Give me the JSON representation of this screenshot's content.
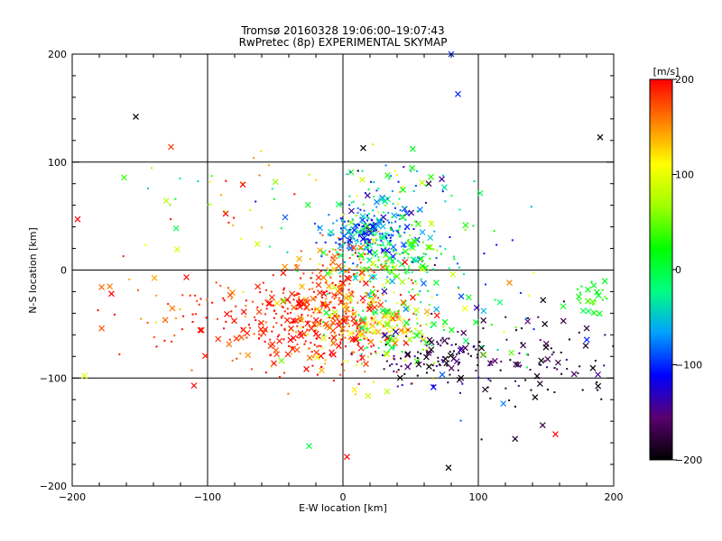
{
  "chart_data": {
    "type": "scatter",
    "title": "Tromsø 20160328 19:06:00–19:07:43",
    "subtitle": "RwPretec (8p) EXPERIMENTAL SKYMAP",
    "xlabel": "E-W location [km]",
    "ylabel": "N-S location [km]",
    "xlim": [
      -200,
      200
    ],
    "ylim": [
      -200,
      200
    ],
    "x_ticks": [
      -200,
      -100,
      0,
      100,
      200
    ],
    "y_ticks": [
      -200,
      -100,
      0,
      100,
      200
    ],
    "x_tick_labels": [
      "−200",
      "−100",
      "0",
      "100",
      "200"
    ],
    "y_tick_labels": [
      "−200",
      "−100",
      "0",
      "100",
      "200"
    ],
    "grid": true,
    "colorbar": {
      "label": "[m/s]",
      "range": [
        -200,
        200
      ],
      "ticks": [
        200,
        100,
        0,
        -100,
        -200
      ],
      "tick_labels": [
        "200",
        "100",
        "0",
        "−100",
        "−200"
      ],
      "colors": [
        "#000000",
        "#5a0070",
        "#0000ff",
        "#00a0ff",
        "#00ff80",
        "#00ff00",
        "#a0ff00",
        "#ffff00",
        "#ff8000",
        "#ff0000"
      ]
    },
    "clusters": [
      {
        "cx": 20,
        "cy": 35,
        "sx": 18,
        "sy": 12,
        "n": 220,
        "v": -90,
        "vsd": 30
      },
      {
        "cx": 30,
        "cy": 15,
        "sx": 25,
        "sy": 18,
        "n": 180,
        "v": 10,
        "vsd": 45
      },
      {
        "cx": -35,
        "cy": -50,
        "sx": 35,
        "sy": 20,
        "n": 260,
        "v": 190,
        "vsd": 15
      },
      {
        "cx": 5,
        "cy": -50,
        "sx": 25,
        "sy": 25,
        "n": 220,
        "v": 150,
        "vsd": 55
      },
      {
        "cx": 40,
        "cy": -50,
        "sx": 20,
        "sy": 20,
        "n": 120,
        "v": 40,
        "vsd": 60
      },
      {
        "cx": 70,
        "cy": -80,
        "sx": 25,
        "sy": 15,
        "n": 120,
        "v": -170,
        "vsd": 30
      },
      {
        "cx": 150,
        "cy": -90,
        "sx": 30,
        "sy": 25,
        "n": 90,
        "v": -175,
        "vsd": 25
      },
      {
        "cx": -5,
        "cy": -10,
        "sx": 15,
        "sy": 20,
        "n": 120,
        "v": 170,
        "vsd": 30
      },
      {
        "cx": 40,
        "cy": 70,
        "sx": 30,
        "sy": 20,
        "n": 80,
        "v": -20,
        "vsd": 80
      },
      {
        "cx": 185,
        "cy": -25,
        "sx": 8,
        "sy": 8,
        "n": 25,
        "v": 20,
        "vsd": 15
      },
      {
        "cx": -130,
        "cy": -40,
        "sx": 35,
        "sy": 25,
        "n": 40,
        "v": 180,
        "vsd": 30
      },
      {
        "cx": -90,
        "cy": 60,
        "sx": 35,
        "sy": 25,
        "n": 40,
        "v": 100,
        "vsd": 100
      },
      {
        "cx": 100,
        "cy": -30,
        "sx": 30,
        "sy": 30,
        "n": 50,
        "v": 0,
        "vsd": 80
      }
    ],
    "outliers": [
      {
        "x": -153,
        "y": 142,
        "v": -200
      },
      {
        "x": -127,
        "y": 114,
        "v": 180
      },
      {
        "x": 15,
        "y": 113,
        "v": -200
      },
      {
        "x": 85,
        "y": 163,
        "v": -100
      },
      {
        "x": 80,
        "y": 200,
        "v": -100
      },
      {
        "x": 190,
        "y": 123,
        "v": -200
      },
      {
        "x": 78,
        "y": -183,
        "v": -200
      },
      {
        "x": 3,
        "y": -173,
        "v": 200
      },
      {
        "x": -25,
        "y": -163,
        "v": 0
      },
      {
        "x": -191,
        "y": -98,
        "v": 100
      },
      {
        "x": -196,
        "y": 47,
        "v": 200
      },
      {
        "x": 157,
        "y": -152,
        "v": 200
      },
      {
        "x": -110,
        "y": -107,
        "v": 200
      }
    ]
  }
}
